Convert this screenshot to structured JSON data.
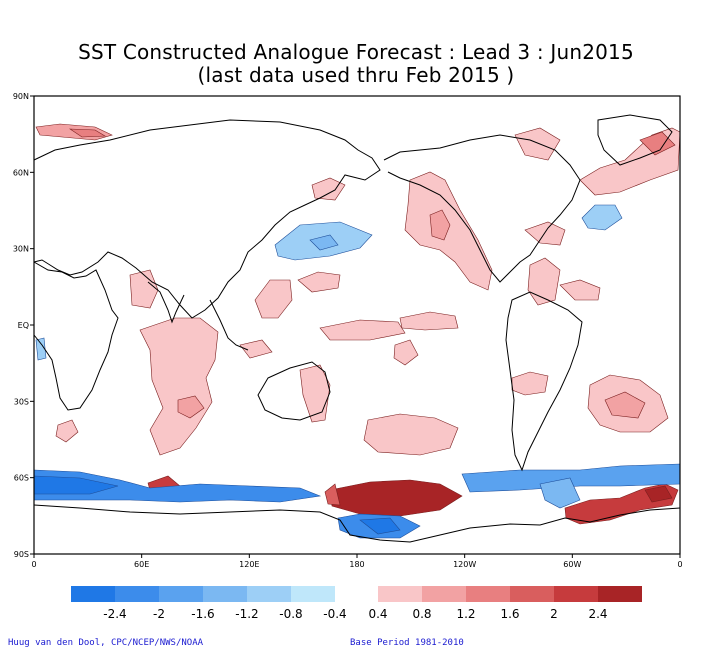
{
  "title_line1": "SST Constructed Analogue Forecast : Lead 3 : Jun2015",
  "title_line2": "(last data used thru Feb 2015 )",
  "lat_labels": [
    "90N",
    "60N",
    "30N",
    "EQ",
    "30S",
    "60S",
    "90S"
  ],
  "lon_labels": [
    "0",
    "60E",
    "120E",
    "180",
    "120W",
    "60W",
    "0"
  ],
  "legend": {
    "negative_labels": [
      "-2.4",
      "-2",
      "-1.6",
      "-1.2",
      "-0.8",
      "-0.4"
    ],
    "positive_labels": [
      "0.4",
      "0.8",
      "1.2",
      "1.6",
      "2",
      "2.4"
    ],
    "negative_colors": [
      "#1f78e6",
      "#3c8ceb",
      "#5aa2ef",
      "#7bb8f2",
      "#9dcff6",
      "#bfe7fa"
    ],
    "positive_colors": [
      "#f9c6c8",
      "#f2a2a3",
      "#e87f80",
      "#d95e5e",
      "#c63b3d",
      "#a82426"
    ]
  },
  "credit_left": "Huug van den Dool, CPC/NCEP/NWS/NOAA",
  "credit_right": "Base Period 1981-2010"
}
